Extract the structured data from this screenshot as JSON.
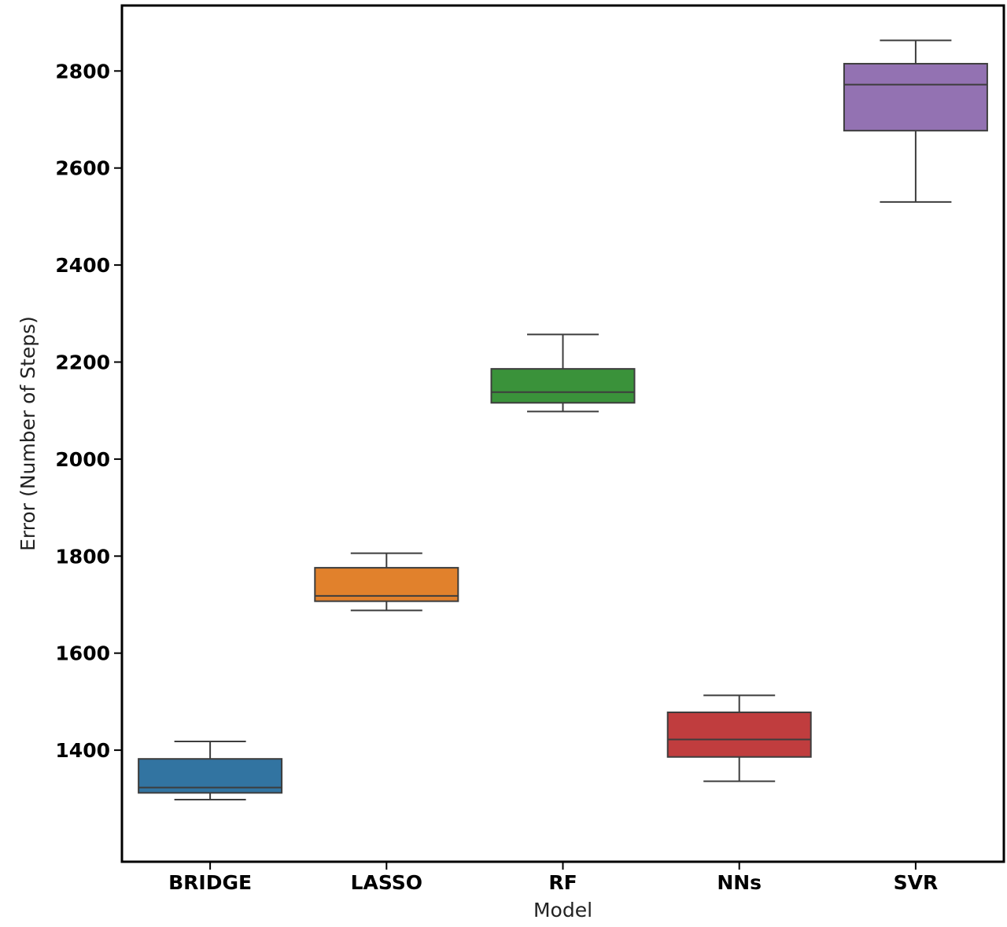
{
  "chart_data": {
    "type": "box",
    "title": "",
    "xlabel": "Model",
    "ylabel": "Error (Number of Steps)",
    "ylim": [
      1170,
      2935
    ],
    "y_ticks": [
      1400,
      1600,
      1800,
      2000,
      2200,
      2400,
      2600,
      2800
    ],
    "grid": false,
    "categories": [
      "BRIDGE",
      "LASSO",
      "RF",
      "NNs",
      "SVR"
    ],
    "boxes": [
      {
        "category": "BRIDGE",
        "whisker_low": 1298,
        "q1": 1312,
        "median": 1323,
        "q3": 1382,
        "whisker_high": 1418,
        "color": "#3274a1"
      },
      {
        "category": "LASSO",
        "whisker_low": 1688,
        "q1": 1707,
        "median": 1718,
        "q3": 1776,
        "whisker_high": 1806,
        "color": "#e1812c"
      },
      {
        "category": "RF",
        "whisker_low": 2098,
        "q1": 2116,
        "median": 2138,
        "q3": 2186,
        "whisker_high": 2257,
        "color": "#3a923a"
      },
      {
        "category": "NNs",
        "whisker_low": 1336,
        "q1": 1386,
        "median": 1422,
        "q3": 1478,
        "whisker_high": 1513,
        "color": "#c03d3e"
      },
      {
        "category": "SVR",
        "whisker_low": 2530,
        "q1": 2677,
        "median": 2772,
        "q3": 2815,
        "whisker_high": 2863,
        "color": "#9372b2"
      }
    ]
  }
}
